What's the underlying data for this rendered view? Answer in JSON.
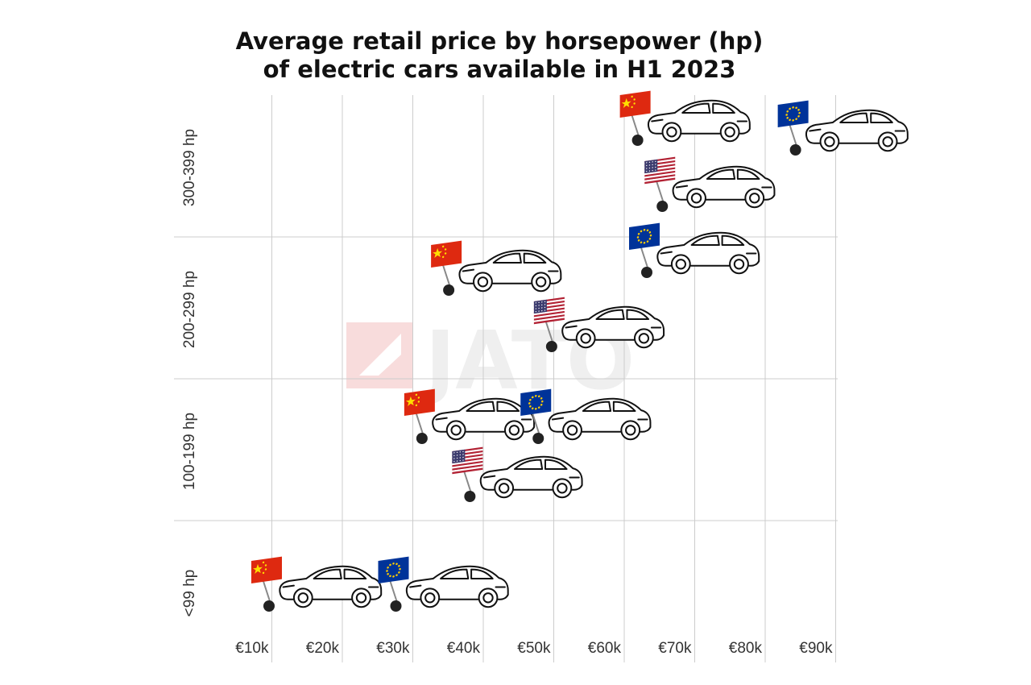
{
  "title_lines": [
    "Average retail price by horsepower (hp)",
    "of electric cars available in H1 2023"
  ],
  "watermark": "JATO",
  "chart_data": {
    "type": "scatter",
    "title": "Average retail price by horsepower (hp) of electric cars available in H1 2023",
    "x_unit": "EUR",
    "xlim": [
      0,
      100000
    ],
    "x_ticks": [
      {
        "value": 10000,
        "label": "€10k"
      },
      {
        "value": 20000,
        "label": "€20k"
      },
      {
        "value": 30000,
        "label": "€30k"
      },
      {
        "value": 40000,
        "label": "€40k"
      },
      {
        "value": 50000,
        "label": "€50k"
      },
      {
        "value": 60000,
        "label": "€60k"
      },
      {
        "value": 70000,
        "label": "€70k"
      },
      {
        "value": 80000,
        "label": "€80k"
      },
      {
        "value": 90000,
        "label": "€90k"
      }
    ],
    "y_categories": [
      "<99 hp",
      "100-199 hp",
      "200-299 hp",
      "300-399 hp"
    ],
    "grid": true,
    "series": [
      {
        "flag": "china",
        "points": [
          {
            "hp_band": "<99 hp",
            "price": 9600
          },
          {
            "hp_band": "100-199 hp",
            "price": 31300
          },
          {
            "hp_band": "200-299 hp",
            "price": 35100
          },
          {
            "hp_band": "300-399 hp",
            "price": 61900
          }
        ]
      },
      {
        "flag": "eu",
        "points": [
          {
            "hp_band": "<99 hp",
            "price": 27600
          },
          {
            "hp_band": "100-199 hp",
            "price": 47800
          },
          {
            "hp_band": "200-299 hp",
            "price": 63200
          },
          {
            "hp_band": "300-399 hp",
            "price": 84300
          }
        ]
      },
      {
        "flag": "usa",
        "points": [
          {
            "hp_band": "100-199 hp",
            "price": 38100
          },
          {
            "hp_band": "200-299 hp",
            "price": 49700
          },
          {
            "hp_band": "300-399 hp",
            "price": 65400
          }
        ]
      }
    ],
    "colors": {
      "china": "#de2910",
      "china_star": "#ffde00",
      "eu": "#003399",
      "eu_star": "#ffcc00",
      "usa_red": "#b22234",
      "usa_blue": "#3c3b6e",
      "grid": "#cccccc",
      "marker": "#222222",
      "watermark": "#efefef"
    }
  }
}
